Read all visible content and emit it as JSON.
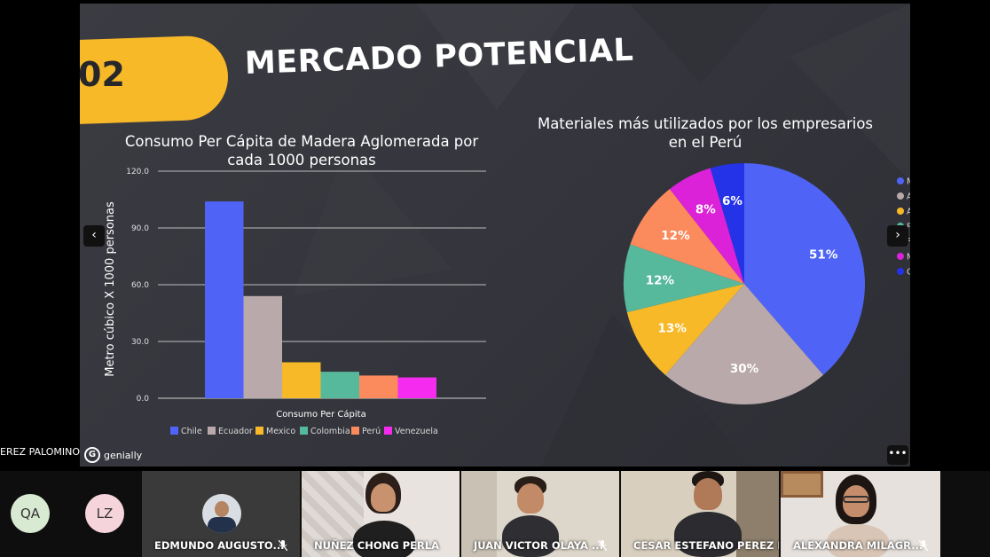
{
  "slide": {
    "badge_number": "02",
    "title": "MERCADO POTENCIAL",
    "presenter_label": "EREZ PALOMINO",
    "brand": "genially",
    "prev_icon": "‹",
    "next_icon": "›",
    "more_icon": "•••"
  },
  "chart_data": [
    {
      "type": "bar",
      "title": "Consumo Per Cápita de Madera Aglomerada por cada 1000 personas",
      "title_lines": [
        "Consumo Per Cápita de Madera Aglomerada por",
        "cada 1000 personas"
      ],
      "xlabel": "Consumo Per Cápita",
      "ylabel": "Metro cúbico X 1000 personas",
      "ylim": [
        0,
        120
      ],
      "yticks": [
        "0.0",
        "30.0",
        "60.0",
        "90.0",
        "120.0"
      ],
      "grid": true,
      "legend_position": "bottom",
      "series": [
        {
          "name": "Chile",
          "value": 104,
          "color": "#4f64f7"
        },
        {
          "name": "Ecuador",
          "value": 54,
          "color": "#b9a9ab"
        },
        {
          "name": "Mexico",
          "value": 19,
          "color": "#f7b928"
        },
        {
          "name": "Colombia",
          "value": 14,
          "color": "#57b99c"
        },
        {
          "name": "Perú",
          "value": 12,
          "color": "#fb8a5c"
        },
        {
          "name": "Venezuela",
          "value": 11,
          "color": "#f52cf0"
        }
      ]
    },
    {
      "type": "pie",
      "title": "Materiales más utilizados por los empresarios en el Perú",
      "title_lines": [
        "Materiales más utilizados por los empresarios",
        "en el Perú"
      ],
      "legend_position": "right",
      "slices": [
        {
          "label": "Melamine",
          "value": 51,
          "text": "51%",
          "color": "#4f64f7"
        },
        {
          "label": "Aglomerado",
          "value": 30,
          "text": "30%",
          "color": "#b9a9ab"
        },
        {
          "label": "Aluminio",
          "value": 13,
          "text": "13%",
          "color": "#f7b928"
        },
        {
          "label": "PostFormado",
          "value": 12,
          "text": "12%",
          "color": "#57b99c"
        },
        {
          "label": "Fenólicos",
          "value": 12,
          "text": "12%",
          "color": "#fb8a5c"
        },
        {
          "label": "MDF",
          "value": 8,
          "text": "8%",
          "color": "#db22d8"
        },
        {
          "label": "Otros",
          "value": 6,
          "text": "6%",
          "color": "#2533e8"
        }
      ]
    }
  ],
  "participants": [
    {
      "initials": "QA",
      "color": "#d9ead3"
    },
    {
      "initials": "LZ",
      "color": "#f6d4dc"
    },
    {
      "name": "EDMUNDO AUGUSTO...",
      "muted": true
    },
    {
      "name": "NUÑEZ CHONG PERLA",
      "muted": false
    },
    {
      "name": "JUAN VICTOR OLAYA ...",
      "muted": true
    },
    {
      "name": "CESAR ESTEFANO PEREZ P...",
      "muted": false
    },
    {
      "name": "ALEXANDRA MILAGR...",
      "muted": true
    }
  ]
}
